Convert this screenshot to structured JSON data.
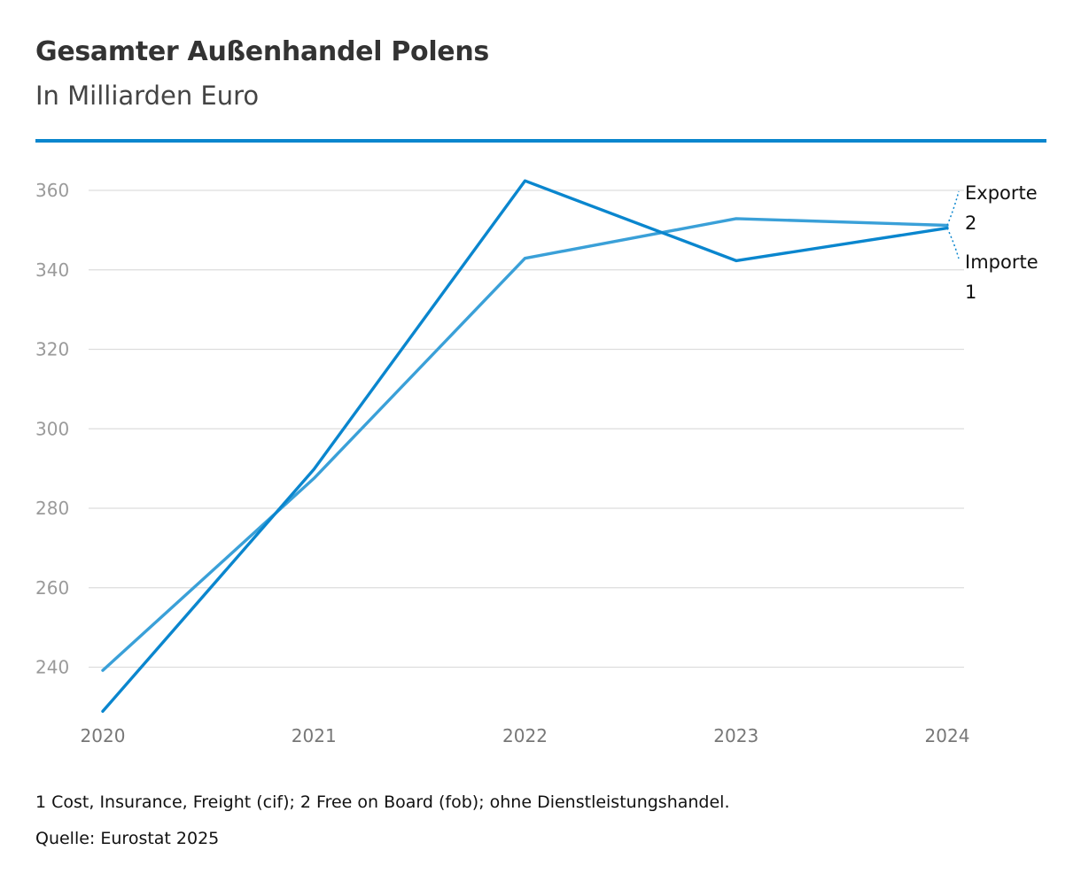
{
  "header": {
    "title": "Gesamter Außenhandel Polens",
    "subtitle": "In Milliarden Euro"
  },
  "colors": {
    "accent": "#0a86ce",
    "importe": "#0a86ce",
    "exporte": "#3aa0d8",
    "grid": "#dddddd"
  },
  "chart_data": {
    "type": "line",
    "title": "Gesamter Außenhandel Polens",
    "subtitle": "In Milliarden Euro",
    "xlabel": "",
    "ylabel": "",
    "x": [
      "2020",
      "2021",
      "2022",
      "2023",
      "2024"
    ],
    "yticks": [
      240,
      260,
      280,
      300,
      320,
      340,
      360
    ],
    "ylim": [
      228,
      368
    ],
    "grid": true,
    "legend": "direct labels at line ends (right)",
    "series": [
      {
        "name": "Importe",
        "footnote_marker": "1",
        "values": [
          228.9,
          289.8,
          362.4,
          342.3,
          350.5
        ]
      },
      {
        "name": "Exporte",
        "footnote_marker": "2",
        "values": [
          239.2,
          287.5,
          342.9,
          352.9,
          351.2
        ]
      }
    ]
  },
  "footer": {
    "footnote": "1 Cost, Insurance, Freight (cif); 2 Free on Board (fob); ohne Dienstleistungshandel.",
    "source": "Quelle: Eurostat 2025"
  }
}
